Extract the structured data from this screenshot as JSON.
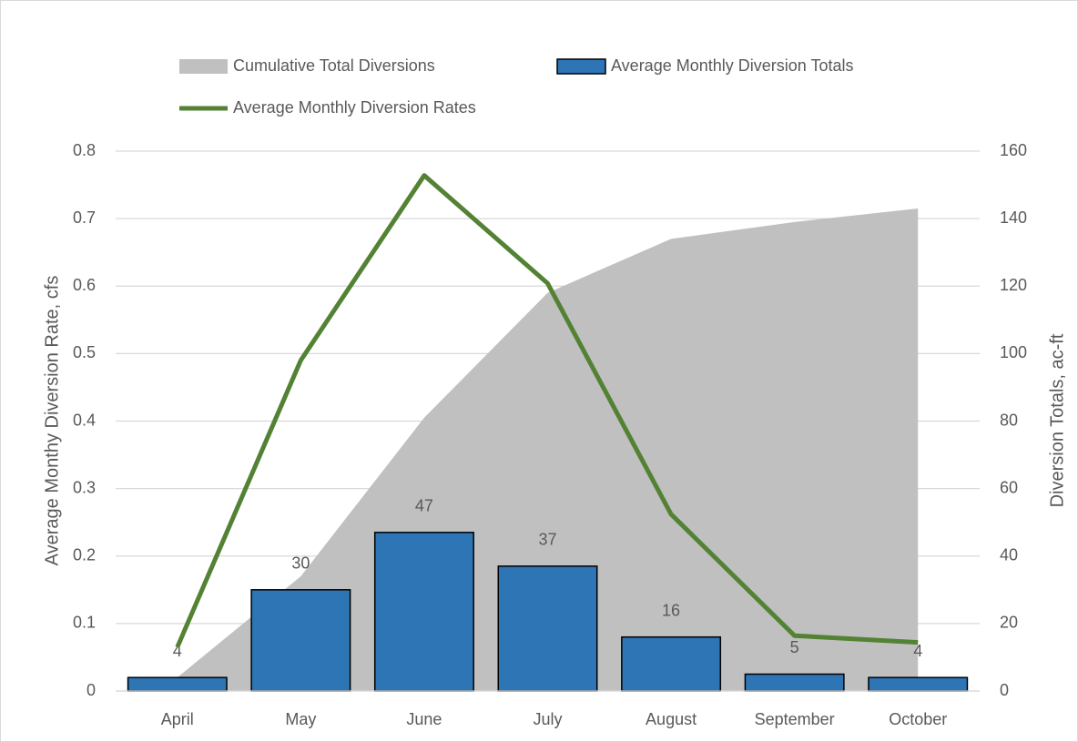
{
  "chart_data": {
    "type": "combo",
    "categories": [
      "April",
      "May",
      "June",
      "July",
      "August",
      "September",
      "October"
    ],
    "series": [
      {
        "name": "Cumulative Total Diversions",
        "type": "area",
        "axis": "y2",
        "color": "#c0c0c0",
        "values": [
          4,
          34,
          81,
          118,
          134,
          139,
          143
        ]
      },
      {
        "name": "Average Monthly Diversion Totals",
        "type": "bar",
        "axis": "y2",
        "color": "#2e75b6",
        "values": [
          4,
          30,
          47,
          37,
          16,
          5,
          4
        ],
        "data_labels": true
      },
      {
        "name": "Average Monthly Diversion Rates",
        "type": "line",
        "axis": "y",
        "color": "#548235",
        "values": [
          0.065,
          0.49,
          0.764,
          0.604,
          0.262,
          0.082,
          0.072
        ]
      }
    ],
    "ylabel": "Average Monthy Diversion Rate,  cfs",
    "y2label": "Diversion Totals, ac-ft",
    "ylim": [
      0,
      0.8
    ],
    "yticks": [
      0,
      0.1,
      0.2,
      0.3,
      0.4,
      0.5,
      0.6,
      0.7,
      0.8
    ],
    "y2lim": [
      0,
      160
    ],
    "y2ticks": [
      0,
      20,
      40,
      60,
      80,
      100,
      120,
      140,
      160
    ],
    "grid": true,
    "legend": "top"
  }
}
